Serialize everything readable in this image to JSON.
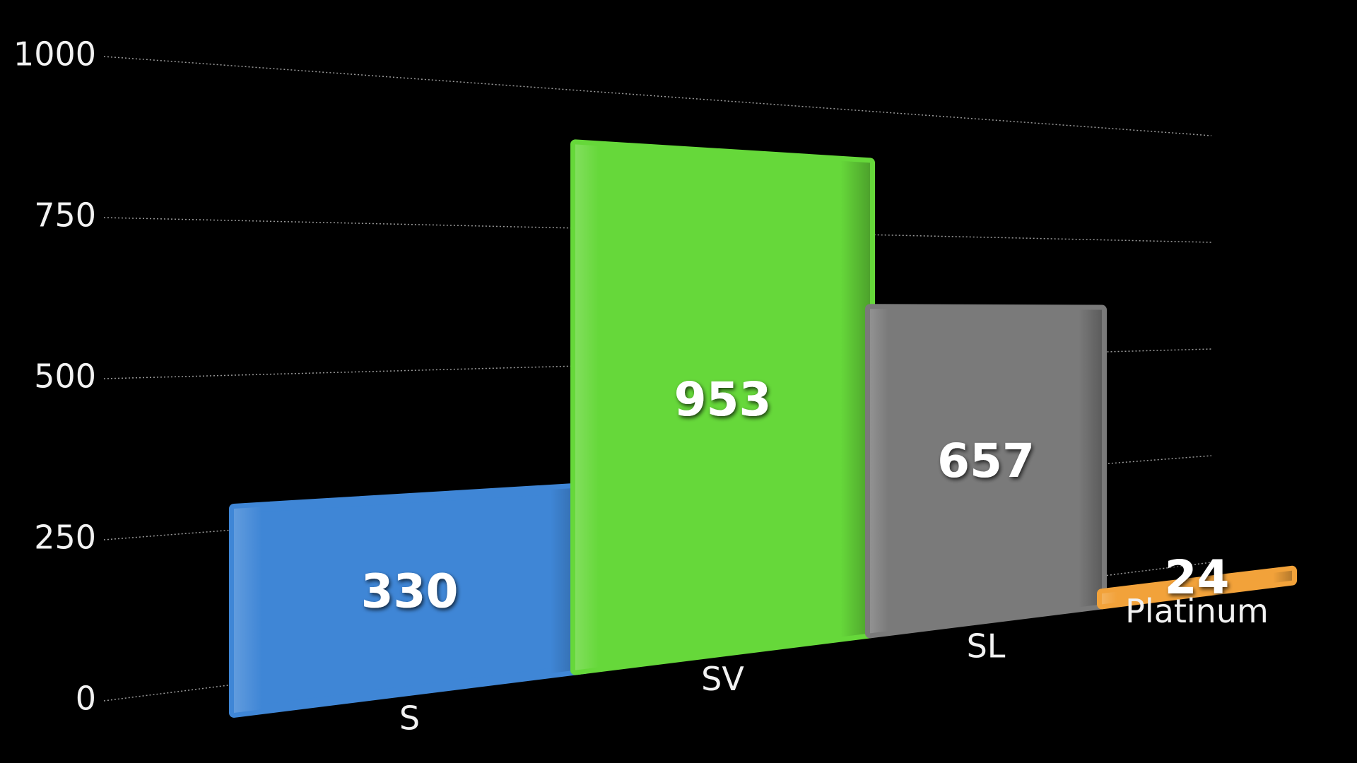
{
  "chart_data": {
    "type": "bar",
    "categories": [
      "S",
      "SV",
      "SL",
      "Platinum"
    ],
    "values": [
      330,
      953,
      657,
      24
    ],
    "colors": [
      "#3f86d6",
      "#66d83a",
      "#7a7a7a",
      "#f2a23a"
    ],
    "ylim": [
      0,
      1000
    ],
    "yticks": [
      0,
      250,
      500,
      750,
      1000
    ],
    "grid": true
  }
}
